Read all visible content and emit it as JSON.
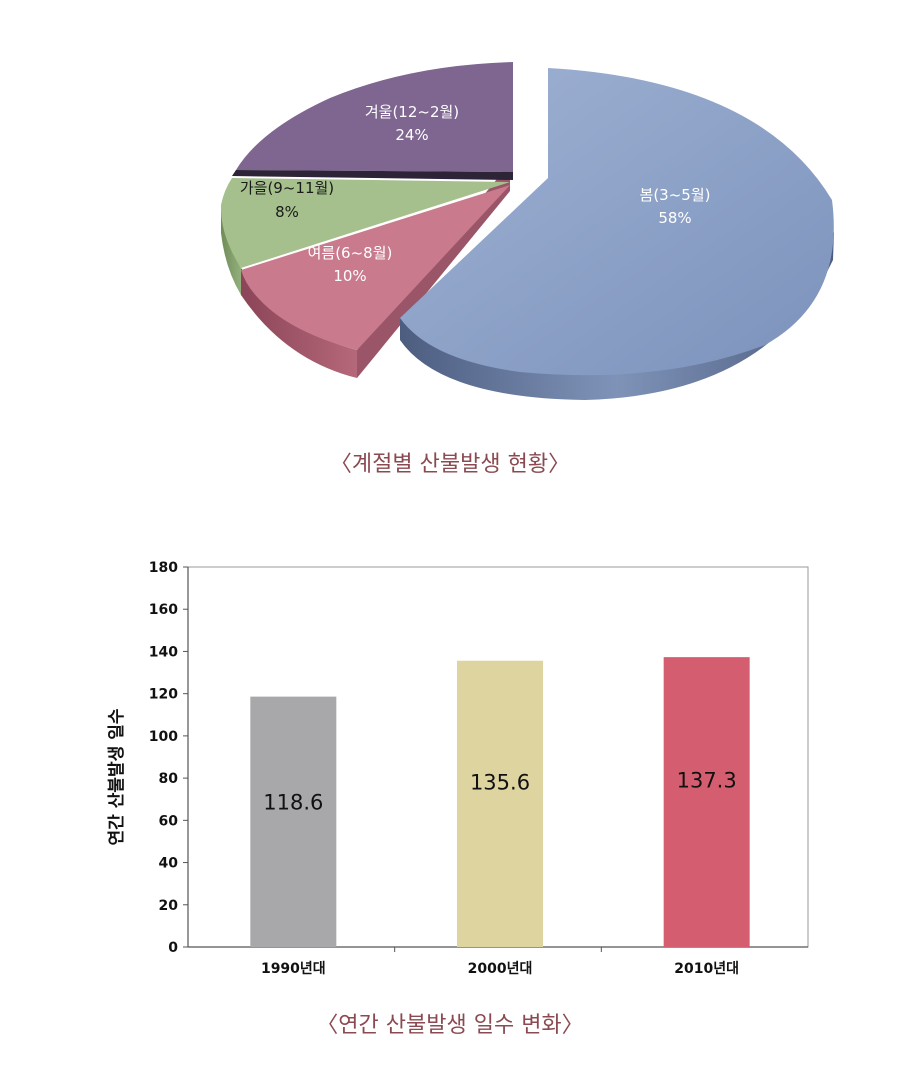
{
  "chart_data": [
    {
      "type": "pie",
      "title": "〈계절별 산불발생 현황〉",
      "slices": [
        {
          "name": "봄(3~5월)",
          "value": 58,
          "label": "58%",
          "color": "#8ea3c8"
        },
        {
          "name": "여름(6~8월)",
          "value": 10,
          "label": "10%",
          "color": "#c97b8d"
        },
        {
          "name": "가을(9~11월)",
          "value": 8,
          "label": "8%",
          "color": "#a5c08c"
        },
        {
          "name": "겨울(12~2월)",
          "value": 24,
          "label": "24%",
          "color": "#7e6690"
        }
      ],
      "legend": "none"
    },
    {
      "type": "bar",
      "title": "〈연간 산불발생 일수 변화〉",
      "categories": [
        "1990년대",
        "2000년대",
        "2010년대"
      ],
      "values": [
        118.6,
        135.6,
        137.3
      ],
      "value_labels": [
        "118.6",
        "135.6",
        "137.3"
      ],
      "colors": [
        "#a8a8aa",
        "#ddd4a0",
        "#d45e70"
      ],
      "xlabel": "",
      "ylabel": "연간 산불발생 일수",
      "ylim": [
        0,
        180
      ],
      "yticks": [
        "0",
        "20",
        "40",
        "60",
        "80",
        "100",
        "120",
        "140",
        "160",
        "180"
      ],
      "grid": false,
      "legend": "none"
    }
  ]
}
